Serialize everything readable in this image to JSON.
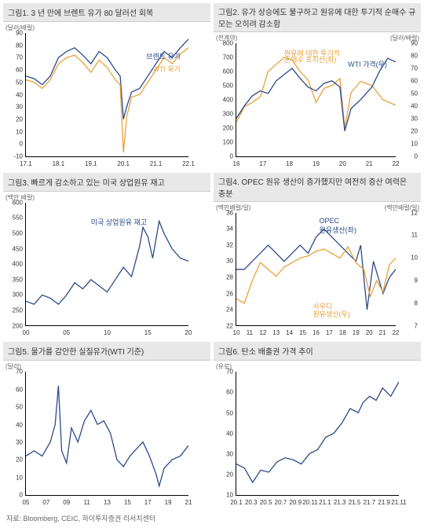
{
  "footer": "자료: Bloomberg, CEIC, 하이투자증권 리서치센터",
  "panels": [
    {
      "id": "p1",
      "title": "그림1.  3 년 만에 브렌트 유가 80 달러선 회복",
      "ylabel_l": "(달러/배럴)",
      "colors": {
        "s1": "#2b4a8a",
        "s2": "#e8a23a"
      },
      "ylim": [
        -10,
        90
      ],
      "ytick_step": 10,
      "xticks": [
        "17.1",
        "18.1",
        "19.1",
        "20.1",
        "21.1",
        "22.1"
      ],
      "series_labels": [
        {
          "text": "브렌트 유가",
          "x": 74,
          "y": 15,
          "color": "#2b4a8a"
        },
        {
          "text": "WTI 유가",
          "x": 78,
          "y": 25,
          "color": "#e8a23a"
        }
      ],
      "series": [
        {
          "c": "s1",
          "pts": [
            [
              0,
              55
            ],
            [
              5,
              53
            ],
            [
              10,
              48
            ],
            [
              15,
              55
            ],
            [
              20,
              70
            ],
            [
              25,
              75
            ],
            [
              30,
              78
            ],
            [
              35,
              72
            ],
            [
              40,
              65
            ],
            [
              45,
              75
            ],
            [
              50,
              70
            ],
            [
              55,
              60
            ],
            [
              58,
              55
            ],
            [
              60,
              20
            ],
            [
              62,
              30
            ],
            [
              65,
              42
            ],
            [
              70,
              45
            ],
            [
              75,
              55
            ],
            [
              80,
              65
            ],
            [
              85,
              75
            ],
            [
              90,
              70
            ],
            [
              95,
              78
            ],
            [
              100,
              85
            ]
          ]
        },
        {
          "c": "s2",
          "pts": [
            [
              0,
              52
            ],
            [
              5,
              50
            ],
            [
              10,
              45
            ],
            [
              15,
              52
            ],
            [
              20,
              65
            ],
            [
              25,
              70
            ],
            [
              30,
              72
            ],
            [
              35,
              66
            ],
            [
              40,
              58
            ],
            [
              45,
              68
            ],
            [
              50,
              62
            ],
            [
              55,
              52
            ],
            [
              58,
              48
            ],
            [
              60,
              -7
            ],
            [
              62,
              22
            ],
            [
              65,
              38
            ],
            [
              70,
              40
            ],
            [
              75,
              50
            ],
            [
              80,
              60
            ],
            [
              85,
              70
            ],
            [
              90,
              65
            ],
            [
              95,
              73
            ],
            [
              100,
              78
            ]
          ]
        }
      ]
    },
    {
      "id": "p2",
      "title": "그림2.  유가 상승에도 불구하고 원유에 대한 투기적 순매수 규모는 오히려 감소함",
      "ylabel_l": "(천계약)",
      "ylabel_r": "(달러/배럴)",
      "colors": {
        "s1": "#e8a23a",
        "s2": "#2b4a8a"
      },
      "ylim": [
        0,
        800
      ],
      "ytick_step": 100,
      "ylim_r": [
        0,
        90
      ],
      "ytick_step_r": 10,
      "xticks": [
        "16",
        "17",
        "18",
        "19",
        "20",
        "21",
        "22"
      ],
      "series_labels": [
        {
          "text": "원유에 대한 투기적",
          "x": 30,
          "y": 4,
          "color": "#e8a23a"
        },
        {
          "text": "순매수 포지션(좌)",
          "x": 30,
          "y": 10,
          "color": "#e8a23a"
        },
        {
          "text": "WTI 가격(우)",
          "x": 70,
          "y": 14,
          "color": "#2b4a8a"
        }
      ],
      "series": [
        {
          "c": "s1",
          "pts": [
            [
              0,
              240
            ],
            [
              5,
              350
            ],
            [
              10,
              380
            ],
            [
              15,
              420
            ],
            [
              20,
              600
            ],
            [
              25,
              650
            ],
            [
              30,
              700
            ],
            [
              35,
              680
            ],
            [
              40,
              600
            ],
            [
              45,
              540
            ],
            [
              50,
              380
            ],
            [
              55,
              480
            ],
            [
              60,
              500
            ],
            [
              65,
              550
            ],
            [
              68,
              200
            ],
            [
              72,
              450
            ],
            [
              78,
              530
            ],
            [
              85,
              500
            ],
            [
              92,
              400
            ],
            [
              100,
              360
            ]
          ]
        },
        {
          "c": "s2",
          "axis": "r",
          "pts": [
            [
              0,
              30
            ],
            [
              5,
              40
            ],
            [
              10,
              48
            ],
            [
              15,
              52
            ],
            [
              20,
              50
            ],
            [
              25,
              60
            ],
            [
              30,
              65
            ],
            [
              35,
              70
            ],
            [
              40,
              62
            ],
            [
              45,
              55
            ],
            [
              50,
              52
            ],
            [
              55,
              58
            ],
            [
              60,
              60
            ],
            [
              65,
              55
            ],
            [
              68,
              20
            ],
            [
              72,
              38
            ],
            [
              78,
              45
            ],
            [
              85,
              55
            ],
            [
              90,
              68
            ],
            [
              95,
              78
            ],
            [
              100,
              75
            ]
          ]
        }
      ]
    },
    {
      "id": "p3",
      "title": "그림3. 빠르게 감소하고 있는 미국 상업원유 재고",
      "ylabel_l": "(백만 배럴)",
      "colors": {
        "s1": "#2b4a8a"
      },
      "ylim": [
        200,
        600
      ],
      "ytick_step": 50,
      "xticks": [
        "00",
        "05",
        "10",
        "15",
        "20"
      ],
      "series_labels": [
        {
          "text": "미국 상업원유 재고",
          "x": 40,
          "y": 12,
          "color": "#2b4a8a"
        }
      ],
      "series": [
        {
          "c": "s1",
          "pts": [
            [
              0,
              280
            ],
            [
              5,
              270
            ],
            [
              10,
              300
            ],
            [
              15,
              290
            ],
            [
              20,
              270
            ],
            [
              25,
              300
            ],
            [
              30,
              340
            ],
            [
              35,
              320
            ],
            [
              40,
              350
            ],
            [
              45,
              330
            ],
            [
              50,
              310
            ],
            [
              55,
              350
            ],
            [
              60,
              390
            ],
            [
              65,
              360
            ],
            [
              70,
              460
            ],
            [
              72,
              520
            ],
            [
              75,
              490
            ],
            [
              78,
              420
            ],
            [
              82,
              540
            ],
            [
              85,
              500
            ],
            [
              90,
              450
            ],
            [
              95,
              420
            ],
            [
              100,
              410
            ]
          ]
        }
      ]
    },
    {
      "id": "p4",
      "title": "그림4. OPEC 원유 생산이 증가했지만 여전히 증산 여력은 충분",
      "ylabel_l": "(백만배럴/일)",
      "ylabel_r": "(백만배럴/일)",
      "colors": {
        "s1": "#2b4a8a",
        "s2": "#e8a23a"
      },
      "ylim": [
        22,
        36
      ],
      "ytick_step": 2,
      "ylim_r": [
        7,
        12
      ],
      "ytick_step_r": 1,
      "xticks": [
        "10",
        "11",
        "12",
        "13",
        "14",
        "15",
        "16",
        "17",
        "18",
        "19",
        "20",
        "21",
        "22"
      ],
      "series_labels": [
        {
          "text": "OPEC",
          "x": 52,
          "y": 4,
          "color": "#2b4a8a"
        },
        {
          "text": "원유생산(좌)",
          "x": 52,
          "y": 11,
          "color": "#2b4a8a"
        },
        {
          "text": "사우디",
          "x": 48,
          "y": 78,
          "color": "#e8a23a"
        },
        {
          "text": "원유생산(우)",
          "x": 48,
          "y": 85,
          "color": "#e8a23a"
        }
      ],
      "series": [
        {
          "c": "s1",
          "pts": [
            [
              0,
              29
            ],
            [
              5,
              29
            ],
            [
              10,
              30
            ],
            [
              15,
              31
            ],
            [
              20,
              32
            ],
            [
              25,
              31
            ],
            [
              30,
              30
            ],
            [
              35,
              31
            ],
            [
              40,
              32
            ],
            [
              45,
              31
            ],
            [
              50,
              33
            ],
            [
              55,
              34
            ],
            [
              60,
              33
            ],
            [
              65,
              32
            ],
            [
              70,
              31
            ],
            [
              75,
              30
            ],
            [
              78,
              32
            ],
            [
              82,
              24
            ],
            [
              86,
              30
            ],
            [
              92,
              26
            ],
            [
              96,
              28
            ],
            [
              100,
              29
            ]
          ]
        },
        {
          "c": "s2",
          "axis": "r",
          "pts": [
            [
              0,
              8.2
            ],
            [
              5,
              8.0
            ],
            [
              10,
              9.0
            ],
            [
              15,
              9.8
            ],
            [
              20,
              9.5
            ],
            [
              25,
              9.2
            ],
            [
              30,
              9.6
            ],
            [
              35,
              9.8
            ],
            [
              40,
              10.0
            ],
            [
              45,
              10.1
            ],
            [
              50,
              10.3
            ],
            [
              55,
              10.4
            ],
            [
              60,
              10.2
            ],
            [
              65,
              10.0
            ],
            [
              70,
              10.5
            ],
            [
              75,
              9.8
            ],
            [
              80,
              9.5
            ],
            [
              84,
              8.3
            ],
            [
              88,
              9.0
            ],
            [
              92,
              8.5
            ],
            [
              96,
              9.7
            ],
            [
              100,
              10.0
            ]
          ]
        }
      ]
    },
    {
      "id": "p5",
      "title": "그림5. 물가를 감안한 실질유가(WTI 기준)",
      "ylabel_l": "(달러)",
      "colors": {
        "s1": "#2b4a8a"
      },
      "ylim": [
        0,
        70
      ],
      "ytick_step": 10,
      "xticks": [
        "05",
        "07",
        "09",
        "11",
        "13",
        "15",
        "17",
        "19",
        "21"
      ],
      "series_labels": [],
      "series": [
        {
          "c": "s1",
          "pts": [
            [
              0,
              22
            ],
            [
              5,
              25
            ],
            [
              10,
              22
            ],
            [
              15,
              30
            ],
            [
              18,
              40
            ],
            [
              20,
              62
            ],
            [
              22,
              25
            ],
            [
              25,
              18
            ],
            [
              28,
              38
            ],
            [
              32,
              30
            ],
            [
              36,
              42
            ],
            [
              40,
              48
            ],
            [
              44,
              40
            ],
            [
              48,
              42
            ],
            [
              52,
              35
            ],
            [
              56,
              20
            ],
            [
              60,
              16
            ],
            [
              64,
              22
            ],
            [
              68,
              26
            ],
            [
              72,
              30
            ],
            [
              76,
              22
            ],
            [
              80,
              12
            ],
            [
              82,
              5
            ],
            [
              85,
              15
            ],
            [
              90,
              20
            ],
            [
              95,
              22
            ],
            [
              100,
              28
            ]
          ]
        }
      ]
    },
    {
      "id": "p6",
      "title": "그림6. 탄소 배출권 가격 추이",
      "ylabel_l": "(유로)",
      "colors": {
        "s1": "#2b4a8a"
      },
      "ylim": [
        10,
        70
      ],
      "ytick_step": 10,
      "xticks": [
        "20.1",
        "20.3",
        "20.5",
        "20.7",
        "20.9",
        "20.11",
        "21.1",
        "21.3",
        "21.5",
        "21.7",
        "21.9",
        "21.11"
      ],
      "series_labels": [],
      "series": [
        {
          "c": "s1",
          "pts": [
            [
              0,
              25
            ],
            [
              5,
              23
            ],
            [
              10,
              16
            ],
            [
              15,
              22
            ],
            [
              20,
              21
            ],
            [
              25,
              26
            ],
            [
              30,
              28
            ],
            [
              35,
              27
            ],
            [
              40,
              25
            ],
            [
              45,
              30
            ],
            [
              50,
              32
            ],
            [
              55,
              38
            ],
            [
              60,
              40
            ],
            [
              65,
              45
            ],
            [
              70,
              52
            ],
            [
              75,
              50
            ],
            [
              78,
              55
            ],
            [
              82,
              58
            ],
            [
              86,
              56
            ],
            [
              90,
              62
            ],
            [
              95,
              58
            ],
            [
              100,
              65
            ]
          ]
        }
      ]
    }
  ]
}
